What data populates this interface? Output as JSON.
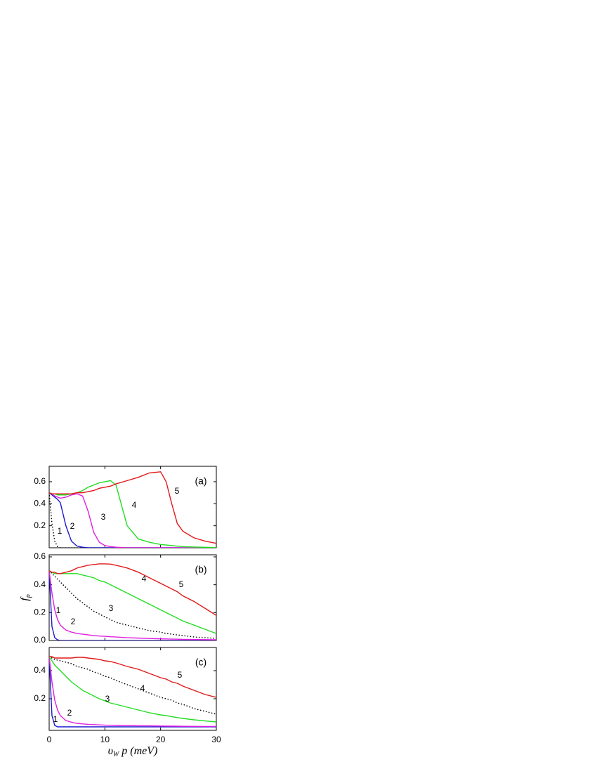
{
  "chart_data": [
    {
      "type": "line",
      "panel_label": "(a)",
      "x": [
        0,
        0.5,
        1,
        1.5,
        2,
        3,
        4,
        5,
        6,
        7,
        8,
        9,
        10,
        11,
        12,
        14,
        16,
        18,
        20,
        21,
        22,
        23,
        24,
        26,
        28,
        30
      ],
      "xlim": [
        0,
        30
      ],
      "ylim": [
        0,
        0.74
      ],
      "yticks": [
        0.2,
        0.4,
        0.6
      ],
      "series": [
        {
          "name": "1",
          "color": "#000000",
          "dash": true,
          "values": [
            0.5,
            0.22,
            0.06,
            0.01,
            0,
            0,
            0,
            0,
            0,
            0,
            0,
            0,
            0,
            0,
            0,
            0,
            0,
            0,
            0,
            0,
            0,
            0,
            0,
            0,
            0,
            0
          ]
        },
        {
          "name": "2",
          "color": "#1a1ad0",
          "dash": false,
          "values": [
            0.5,
            0.48,
            0.46,
            0.44,
            0.41,
            0.2,
            0.06,
            0.015,
            0.005,
            0,
            0,
            0,
            0,
            0,
            0,
            0,
            0,
            0,
            0,
            0,
            0,
            0,
            0,
            0,
            0,
            0
          ]
        },
        {
          "name": "3",
          "color": "#e020e0",
          "dash": false,
          "values": [
            0.5,
            0.49,
            0.47,
            0.46,
            0.45,
            0.46,
            0.48,
            0.49,
            0.47,
            0.33,
            0.14,
            0.05,
            0.02,
            0.01,
            0.005,
            0,
            0,
            0,
            0,
            0,
            0,
            0,
            0,
            0,
            0,
            0
          ]
        },
        {
          "name": "4",
          "color": "#22dd22",
          "dash": false,
          "values": [
            0.5,
            0.49,
            0.49,
            0.48,
            0.48,
            0.48,
            0.49,
            0.5,
            0.52,
            0.55,
            0.57,
            0.59,
            0.6,
            0.61,
            0.57,
            0.2,
            0.08,
            0.05,
            0.03,
            0.025,
            0.02,
            0.015,
            0.01,
            0.007,
            0.004,
            0.002
          ]
        },
        {
          "name": "5",
          "color": "#e01818",
          "dash": false,
          "values": [
            0.5,
            0.49,
            0.49,
            0.49,
            0.49,
            0.49,
            0.49,
            0.5,
            0.5,
            0.51,
            0.52,
            0.54,
            0.55,
            0.56,
            0.58,
            0.61,
            0.64,
            0.68,
            0.69,
            0.6,
            0.4,
            0.22,
            0.15,
            0.09,
            0.06,
            0.04
          ]
        }
      ]
    },
    {
      "type": "line",
      "panel_label": "(b)",
      "ylabel": {
        "main": "f",
        "sub": "p"
      },
      "x": [
        0,
        0.5,
        1,
        1.5,
        2,
        3,
        4,
        5,
        6,
        7,
        8,
        9,
        10,
        11,
        12,
        14,
        16,
        18,
        20,
        21,
        22,
        23,
        24,
        26,
        28,
        30
      ],
      "xlim": [
        0,
        30
      ],
      "ylim": [
        0,
        0.615
      ],
      "yticks": [
        {
          "value": 0,
          "label": "0.0"
        },
        0.2,
        0.4,
        0.6
      ],
      "series": [
        {
          "name": "1",
          "color": "#1a1ad0",
          "dash": false,
          "values": [
            0.5,
            0.1,
            0.02,
            0.005,
            0,
            0,
            0,
            0,
            0,
            0,
            0,
            0,
            0,
            0,
            0,
            0,
            0,
            0,
            0,
            0,
            0,
            0,
            0,
            0,
            0,
            0
          ]
        },
        {
          "name": "2",
          "color": "#e020e0",
          "dash": false,
          "values": [
            0.5,
            0.34,
            0.22,
            0.15,
            0.11,
            0.075,
            0.06,
            0.05,
            0.045,
            0.04,
            0.035,
            0.032,
            0.03,
            0.027,
            0.025,
            0.02,
            0.017,
            0.014,
            0.012,
            0.011,
            0.01,
            0.009,
            0.008,
            0.007,
            0.006,
            0.005
          ]
        },
        {
          "name": "3",
          "color": "#000000",
          "dash": true,
          "values": [
            0.5,
            0.48,
            0.46,
            0.44,
            0.42,
            0.38,
            0.34,
            0.3,
            0.27,
            0.24,
            0.21,
            0.19,
            0.17,
            0.15,
            0.13,
            0.11,
            0.09,
            0.07,
            0.06,
            0.05,
            0.045,
            0.04,
            0.035,
            0.025,
            0.02,
            0.015
          ]
        },
        {
          "name": "4",
          "color": "#22dd22",
          "dash": false,
          "values": [
            0.5,
            0.49,
            0.48,
            0.48,
            0.48,
            0.48,
            0.48,
            0.48,
            0.47,
            0.46,
            0.45,
            0.43,
            0.42,
            0.4,
            0.38,
            0.34,
            0.3,
            0.26,
            0.22,
            0.2,
            0.18,
            0.16,
            0.14,
            0.11,
            0.08,
            0.05
          ]
        },
        {
          "name": "5",
          "color": "#e01818",
          "dash": false,
          "values": [
            0.5,
            0.49,
            0.49,
            0.48,
            0.48,
            0.49,
            0.5,
            0.52,
            0.53,
            0.54,
            0.545,
            0.55,
            0.55,
            0.548,
            0.54,
            0.52,
            0.49,
            0.45,
            0.41,
            0.39,
            0.37,
            0.35,
            0.32,
            0.28,
            0.23,
            0.18
          ]
        }
      ]
    },
    {
      "type": "line",
      "panel_label": "(c)",
      "xlabel": {
        "main": "υ",
        "sub": "W",
        "rest": "p (meV)"
      },
      "x": [
        0,
        0.5,
        1,
        1.5,
        2,
        3,
        4,
        5,
        6,
        7,
        8,
        9,
        10,
        11,
        12,
        14,
        16,
        18,
        20,
        21,
        22,
        23,
        24,
        26,
        28,
        30
      ],
      "xlim": [
        0,
        30
      ],
      "xticks": [
        0,
        10,
        20,
        30
      ],
      "ylim": [
        -0.025,
        0.565
      ],
      "yticks": [
        0.2,
        0.4
      ],
      "series": [
        {
          "name": "1",
          "color": "#1a1ad0",
          "dash": false,
          "values": [
            0.5,
            0.08,
            0.01,
            0,
            0,
            0,
            0,
            0,
            0,
            0,
            0,
            0,
            0,
            0,
            0,
            0,
            0,
            0,
            0,
            0,
            0,
            0,
            0,
            0,
            0,
            0
          ]
        },
        {
          "name": "2",
          "color": "#e020e0",
          "dash": false,
          "values": [
            0.5,
            0.32,
            0.19,
            0.12,
            0.08,
            0.045,
            0.033,
            0.025,
            0.021,
            0.018,
            0.016,
            0.014,
            0.012,
            0.011,
            0.01,
            0.009,
            0.008,
            0.007,
            0.006,
            0.0055,
            0.005,
            0.0045,
            0.004,
            0.0035,
            0.003,
            0.003
          ]
        },
        {
          "name": "3",
          "color": "#22dd22",
          "dash": false,
          "values": [
            0.5,
            0.47,
            0.44,
            0.42,
            0.4,
            0.36,
            0.32,
            0.29,
            0.26,
            0.24,
            0.22,
            0.2,
            0.185,
            0.17,
            0.16,
            0.14,
            0.12,
            0.1,
            0.085,
            0.08,
            0.072,
            0.066,
            0.06,
            0.05,
            0.042,
            0.035
          ]
        },
        {
          "name": "4",
          "color": "#000000",
          "dash": true,
          "values": [
            0.5,
            0.49,
            0.48,
            0.475,
            0.47,
            0.46,
            0.45,
            0.43,
            0.42,
            0.41,
            0.39,
            0.38,
            0.36,
            0.35,
            0.33,
            0.3,
            0.27,
            0.24,
            0.21,
            0.2,
            0.19,
            0.17,
            0.16,
            0.13,
            0.11,
            0.09
          ]
        },
        {
          "name": "5",
          "color": "#e01818",
          "dash": false,
          "values": [
            0.5,
            0.5,
            0.49,
            0.49,
            0.49,
            0.49,
            0.49,
            0.495,
            0.495,
            0.49,
            0.485,
            0.48,
            0.47,
            0.465,
            0.455,
            0.43,
            0.41,
            0.38,
            0.35,
            0.34,
            0.32,
            0.31,
            0.29,
            0.26,
            0.23,
            0.21
          ]
        }
      ]
    }
  ]
}
